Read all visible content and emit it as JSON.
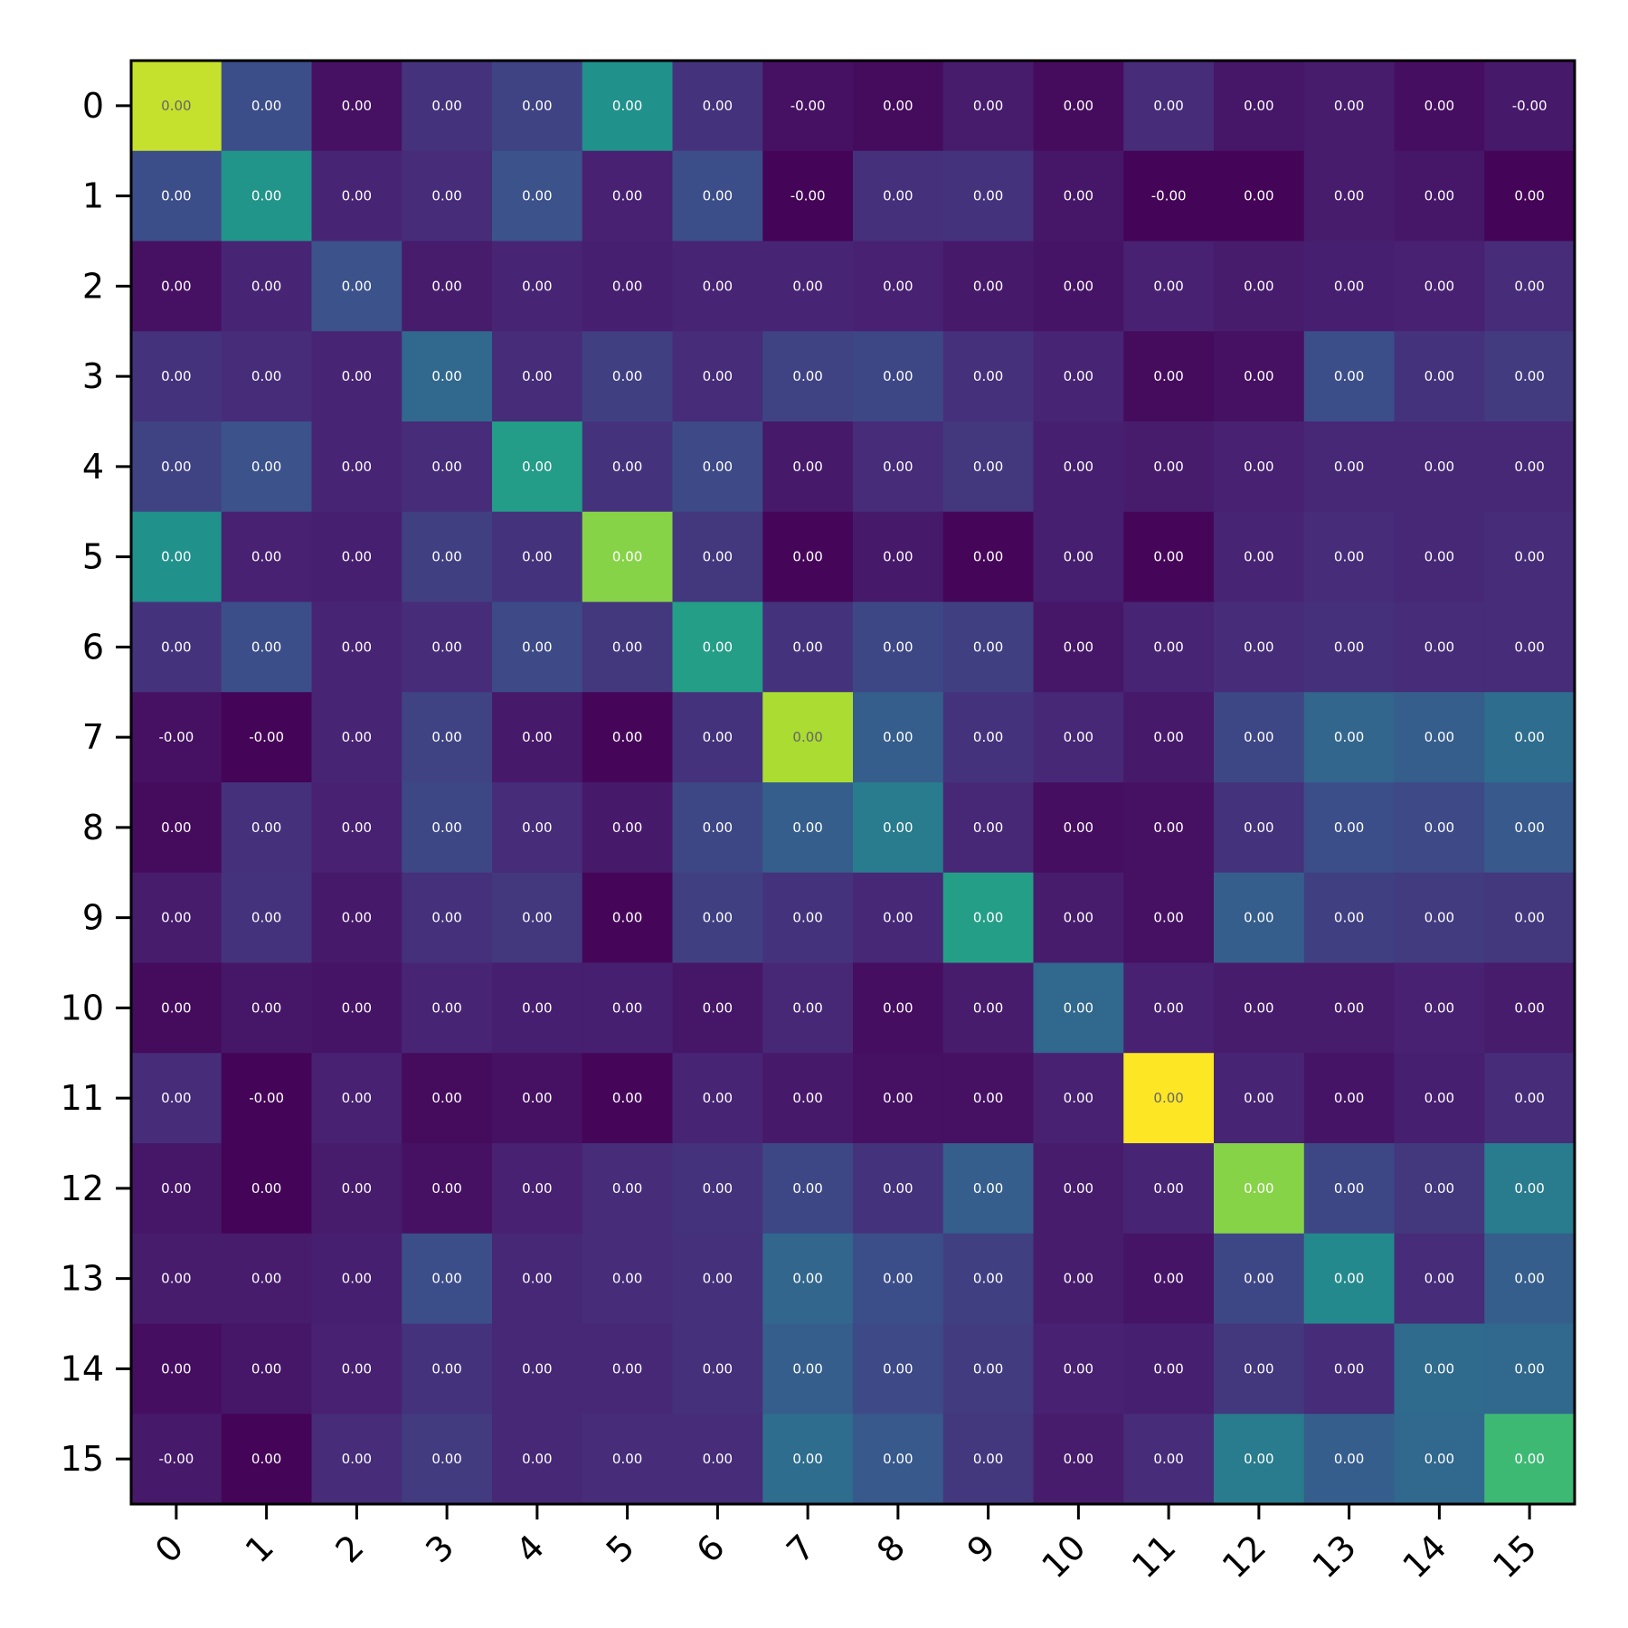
{
  "chart_data": {
    "type": "heatmap",
    "title": "",
    "xlabel": "",
    "ylabel": "",
    "x_categories": [
      "0",
      "1",
      "2",
      "3",
      "4",
      "5",
      "6",
      "7",
      "8",
      "9",
      "10",
      "11",
      "12",
      "13",
      "14",
      "15"
    ],
    "y_categories": [
      "0",
      "1",
      "2",
      "3",
      "4",
      "5",
      "6",
      "7",
      "8",
      "9",
      "10",
      "11",
      "12",
      "13",
      "14",
      "15"
    ],
    "colormap": "viridis",
    "value_range": [
      0,
      1
    ],
    "intensity": [
      [
        0.92,
        0.24,
        0.06,
        0.17,
        0.21,
        0.5,
        0.17,
        0.06,
        0.04,
        0.1,
        0.04,
        0.15,
        0.08,
        0.1,
        0.05,
        0.09
      ],
      [
        0.24,
        0.52,
        0.13,
        0.15,
        0.25,
        0.12,
        0.24,
        0.01,
        0.16,
        0.17,
        0.08,
        0.01,
        0.01,
        0.1,
        0.08,
        0.01
      ],
      [
        0.06,
        0.13,
        0.25,
        0.1,
        0.13,
        0.11,
        0.13,
        0.13,
        0.12,
        0.09,
        0.07,
        0.12,
        0.1,
        0.11,
        0.12,
        0.15
      ],
      [
        0.17,
        0.15,
        0.13,
        0.34,
        0.15,
        0.2,
        0.15,
        0.21,
        0.22,
        0.16,
        0.13,
        0.04,
        0.06,
        0.24,
        0.17,
        0.19
      ],
      [
        0.21,
        0.25,
        0.13,
        0.15,
        0.55,
        0.17,
        0.23,
        0.09,
        0.15,
        0.18,
        0.11,
        0.1,
        0.12,
        0.14,
        0.14,
        0.14
      ],
      [
        0.5,
        0.12,
        0.11,
        0.2,
        0.17,
        0.82,
        0.18,
        0.02,
        0.09,
        0.02,
        0.11,
        0.02,
        0.13,
        0.15,
        0.14,
        0.15
      ],
      [
        0.17,
        0.24,
        0.13,
        0.15,
        0.23,
        0.18,
        0.56,
        0.17,
        0.22,
        0.2,
        0.08,
        0.13,
        0.15,
        0.16,
        0.15,
        0.15
      ],
      [
        0.06,
        0.01,
        0.13,
        0.21,
        0.09,
        0.02,
        0.17,
        0.88,
        0.3,
        0.17,
        0.14,
        0.09,
        0.22,
        0.33,
        0.3,
        0.36
      ],
      [
        0.04,
        0.16,
        0.12,
        0.22,
        0.15,
        0.09,
        0.22,
        0.3,
        0.42,
        0.14,
        0.05,
        0.06,
        0.17,
        0.24,
        0.23,
        0.28
      ],
      [
        0.1,
        0.17,
        0.09,
        0.16,
        0.18,
        0.02,
        0.2,
        0.17,
        0.14,
        0.56,
        0.1,
        0.06,
        0.3,
        0.2,
        0.19,
        0.18
      ],
      [
        0.04,
        0.08,
        0.07,
        0.13,
        0.11,
        0.11,
        0.08,
        0.14,
        0.05,
        0.1,
        0.34,
        0.12,
        0.1,
        0.1,
        0.12,
        0.1
      ],
      [
        0.15,
        0.01,
        0.12,
        0.04,
        0.06,
        0.02,
        0.13,
        0.09,
        0.06,
        0.06,
        0.12,
        1.0,
        0.13,
        0.07,
        0.11,
        0.15
      ],
      [
        0.08,
        0.01,
        0.1,
        0.06,
        0.12,
        0.15,
        0.17,
        0.22,
        0.17,
        0.3,
        0.1,
        0.13,
        0.82,
        0.22,
        0.18,
        0.42
      ],
      [
        0.1,
        0.1,
        0.11,
        0.24,
        0.14,
        0.15,
        0.16,
        0.33,
        0.24,
        0.2,
        0.1,
        0.07,
        0.22,
        0.47,
        0.15,
        0.3
      ],
      [
        0.05,
        0.08,
        0.12,
        0.17,
        0.14,
        0.14,
        0.16,
        0.3,
        0.23,
        0.19,
        0.12,
        0.11,
        0.18,
        0.15,
        0.35,
        0.34
      ],
      [
        0.09,
        0.01,
        0.15,
        0.19,
        0.14,
        0.15,
        0.15,
        0.36,
        0.28,
        0.18,
        0.1,
        0.15,
        0.42,
        0.3,
        0.34,
        0.68
      ]
    ],
    "annotations": [
      [
        "0.00",
        "0.00",
        "0.00",
        "0.00",
        "0.00",
        "0.00",
        "0.00",
        "-0.00",
        "0.00",
        "0.00",
        "0.00",
        "0.00",
        "0.00",
        "0.00",
        "0.00",
        "-0.00"
      ],
      [
        "0.00",
        "0.00",
        "0.00",
        "0.00",
        "0.00",
        "0.00",
        "0.00",
        "-0.00",
        "0.00",
        "0.00",
        "0.00",
        "-0.00",
        "0.00",
        "0.00",
        "0.00",
        "0.00"
      ],
      [
        "0.00",
        "0.00",
        "0.00",
        "0.00",
        "0.00",
        "0.00",
        "0.00",
        "0.00",
        "0.00",
        "0.00",
        "0.00",
        "0.00",
        "0.00",
        "0.00",
        "0.00",
        "0.00"
      ],
      [
        "0.00",
        "0.00",
        "0.00",
        "0.00",
        "0.00",
        "0.00",
        "0.00",
        "0.00",
        "0.00",
        "0.00",
        "0.00",
        "0.00",
        "0.00",
        "0.00",
        "0.00",
        "0.00"
      ],
      [
        "0.00",
        "0.00",
        "0.00",
        "0.00",
        "0.00",
        "0.00",
        "0.00",
        "0.00",
        "0.00",
        "0.00",
        "0.00",
        "0.00",
        "0.00",
        "0.00",
        "0.00",
        "0.00"
      ],
      [
        "0.00",
        "0.00",
        "0.00",
        "0.00",
        "0.00",
        "0.00",
        "0.00",
        "0.00",
        "0.00",
        "0.00",
        "0.00",
        "0.00",
        "0.00",
        "0.00",
        "0.00",
        "0.00"
      ],
      [
        "0.00",
        "0.00",
        "0.00",
        "0.00",
        "0.00",
        "0.00",
        "0.00",
        "0.00",
        "0.00",
        "0.00",
        "0.00",
        "0.00",
        "0.00",
        "0.00",
        "0.00",
        "0.00"
      ],
      [
        "-0.00",
        "-0.00",
        "0.00",
        "0.00",
        "0.00",
        "0.00",
        "0.00",
        "0.00",
        "0.00",
        "0.00",
        "0.00",
        "0.00",
        "0.00",
        "0.00",
        "0.00",
        "0.00"
      ],
      [
        "0.00",
        "0.00",
        "0.00",
        "0.00",
        "0.00",
        "0.00",
        "0.00",
        "0.00",
        "0.00",
        "0.00",
        "0.00",
        "0.00",
        "0.00",
        "0.00",
        "0.00",
        "0.00"
      ],
      [
        "0.00",
        "0.00",
        "0.00",
        "0.00",
        "0.00",
        "0.00",
        "0.00",
        "0.00",
        "0.00",
        "0.00",
        "0.00",
        "0.00",
        "0.00",
        "0.00",
        "0.00",
        "0.00"
      ],
      [
        "0.00",
        "0.00",
        "0.00",
        "0.00",
        "0.00",
        "0.00",
        "0.00",
        "0.00",
        "0.00",
        "0.00",
        "0.00",
        "0.00",
        "0.00",
        "0.00",
        "0.00",
        "0.00"
      ],
      [
        "0.00",
        "-0.00",
        "0.00",
        "0.00",
        "0.00",
        "0.00",
        "0.00",
        "0.00",
        "0.00",
        "0.00",
        "0.00",
        "0.00",
        "0.00",
        "0.00",
        "0.00",
        "0.00"
      ],
      [
        "0.00",
        "0.00",
        "0.00",
        "0.00",
        "0.00",
        "0.00",
        "0.00",
        "0.00",
        "0.00",
        "0.00",
        "0.00",
        "0.00",
        "0.00",
        "0.00",
        "0.00",
        "0.00"
      ],
      [
        "0.00",
        "0.00",
        "0.00",
        "0.00",
        "0.00",
        "0.00",
        "0.00",
        "0.00",
        "0.00",
        "0.00",
        "0.00",
        "0.00",
        "0.00",
        "0.00",
        "0.00",
        "0.00"
      ],
      [
        "0.00",
        "0.00",
        "0.00",
        "0.00",
        "0.00",
        "0.00",
        "0.00",
        "0.00",
        "0.00",
        "0.00",
        "0.00",
        "0.00",
        "0.00",
        "0.00",
        "0.00",
        "0.00"
      ],
      [
        "-0.00",
        "0.00",
        "0.00",
        "0.00",
        "0.00",
        "0.00",
        "0.00",
        "0.00",
        "0.00",
        "0.00",
        "0.00",
        "0.00",
        "0.00",
        "0.00",
        "0.00",
        "0.00"
      ]
    ],
    "grid": false,
    "legend": "none"
  }
}
